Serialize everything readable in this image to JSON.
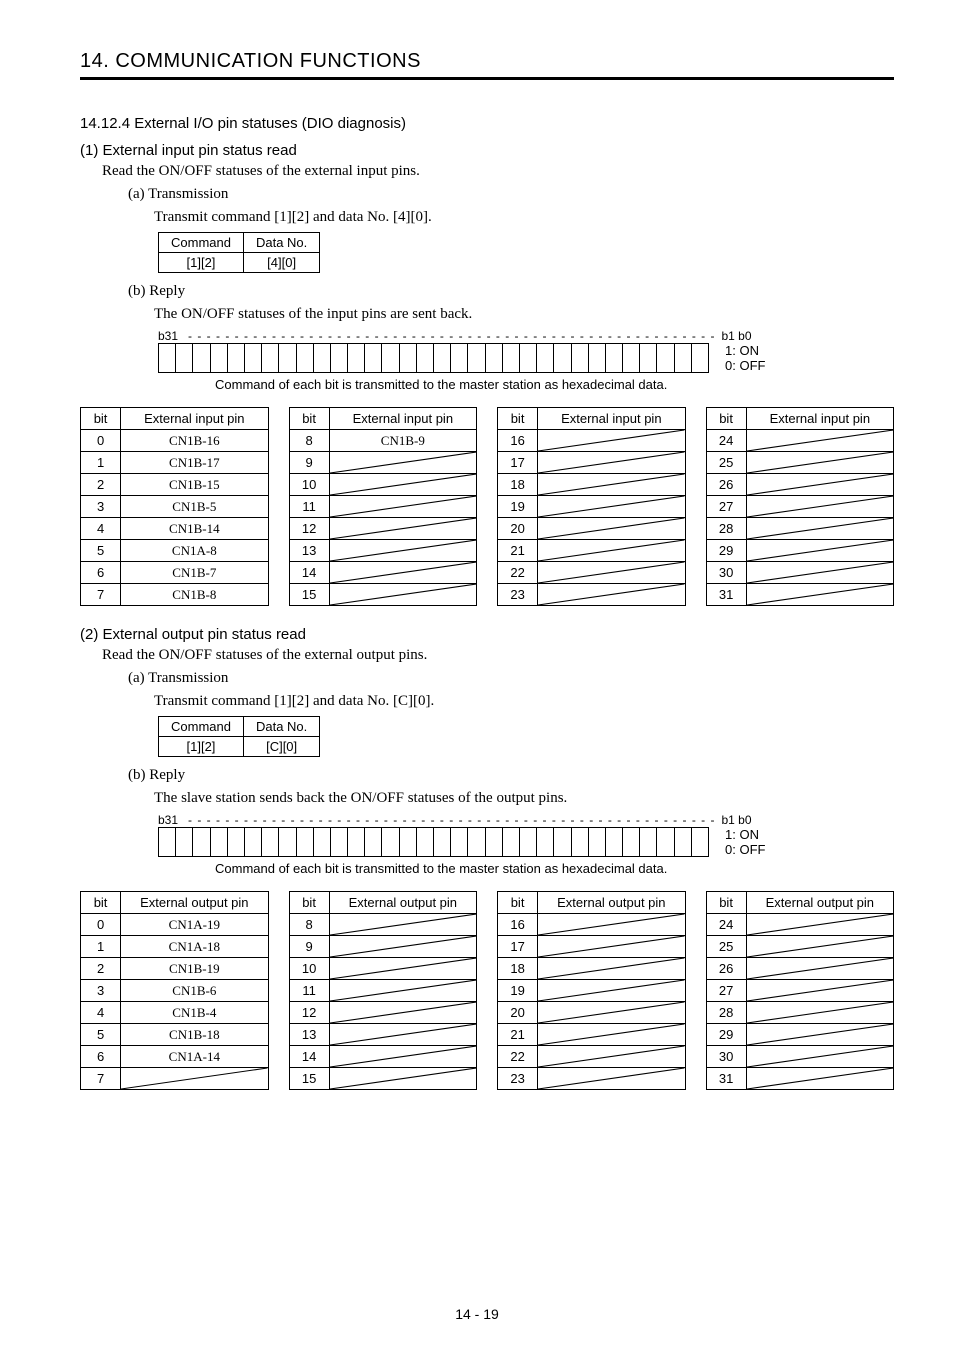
{
  "chapter_title": "14. COMMUNICATION FUNCTIONS",
  "section_title": "14.12.4 External I/O pin statuses (DIO diagnosis)",
  "page_number": "14 -  19",
  "section1": {
    "heading": "(1) External input pin status read",
    "desc": "Read the ON/OFF statuses of the external input pins.",
    "a": {
      "heading": "(a) Transmission",
      "desc": "Transmit command [1][2] and data No. [4][0].",
      "cmd_table": {
        "headers": [
          "Command",
          "Data No."
        ],
        "row": [
          "[1][2]",
          "[4][0]"
        ]
      }
    },
    "b": {
      "heading": "(b) Reply",
      "desc": "The ON/OFF statuses of the input pins are sent back.",
      "bit_left": "b31",
      "bit_right": "b1  b0",
      "legend_on": "1: ON",
      "legend_off": "0: OFF",
      "note": "Command of each bit is transmitted to the master station as hexadecimal data."
    },
    "pin_header": [
      "bit",
      "External input pin"
    ],
    "pins": [
      [
        "0",
        "CN1B-16"
      ],
      [
        "1",
        "CN1B-17"
      ],
      [
        "2",
        "CN1B-15"
      ],
      [
        "3",
        "CN1B-5"
      ],
      [
        "4",
        "CN1B-14"
      ],
      [
        "5",
        "CN1A-8"
      ],
      [
        "6",
        "CN1B-7"
      ],
      [
        "7",
        "CN1B-8"
      ],
      [
        "8",
        "CN1B-9"
      ],
      [
        "9",
        ""
      ],
      [
        "10",
        ""
      ],
      [
        "11",
        ""
      ],
      [
        "12",
        ""
      ],
      [
        "13",
        ""
      ],
      [
        "14",
        ""
      ],
      [
        "15",
        ""
      ],
      [
        "16",
        ""
      ],
      [
        "17",
        ""
      ],
      [
        "18",
        ""
      ],
      [
        "19",
        ""
      ],
      [
        "20",
        ""
      ],
      [
        "21",
        ""
      ],
      [
        "22",
        ""
      ],
      [
        "23",
        ""
      ],
      [
        "24",
        ""
      ],
      [
        "25",
        ""
      ],
      [
        "26",
        ""
      ],
      [
        "27",
        ""
      ],
      [
        "28",
        ""
      ],
      [
        "29",
        ""
      ],
      [
        "30",
        ""
      ],
      [
        "31",
        ""
      ]
    ]
  },
  "section2": {
    "heading": "(2) External output pin status read",
    "desc": "Read the ON/OFF statuses of the external output pins.",
    "a": {
      "heading": "(a) Transmission",
      "desc": "Transmit command [1][2] and data No. [C][0].",
      "cmd_table": {
        "headers": [
          "Command",
          "Data No."
        ],
        "row": [
          "[1][2]",
          "[C][0]"
        ]
      }
    },
    "b": {
      "heading": "(b) Reply",
      "desc": "The slave station sends back the ON/OFF statuses of the output pins.",
      "bit_left": "b31",
      "bit_right": "b1  b0",
      "legend_on": "1: ON",
      "legend_off": "0: OFF",
      "note": "Command of each bit is transmitted to the master station as hexadecimal data."
    },
    "pin_header": [
      "bit",
      "External output pin"
    ],
    "pins": [
      [
        "0",
        "CN1A-19"
      ],
      [
        "1",
        "CN1A-18"
      ],
      [
        "2",
        "CN1B-19"
      ],
      [
        "3",
        "CN1B-6"
      ],
      [
        "4",
        "CN1B-4"
      ],
      [
        "5",
        "CN1B-18"
      ],
      [
        "6",
        "CN1A-14"
      ],
      [
        "7",
        ""
      ],
      [
        "8",
        ""
      ],
      [
        "9",
        ""
      ],
      [
        "10",
        ""
      ],
      [
        "11",
        ""
      ],
      [
        "12",
        ""
      ],
      [
        "13",
        ""
      ],
      [
        "14",
        ""
      ],
      [
        "15",
        ""
      ],
      [
        "16",
        ""
      ],
      [
        "17",
        ""
      ],
      [
        "18",
        ""
      ],
      [
        "19",
        ""
      ],
      [
        "20",
        ""
      ],
      [
        "21",
        ""
      ],
      [
        "22",
        ""
      ],
      [
        "23",
        ""
      ],
      [
        "24",
        ""
      ],
      [
        "25",
        ""
      ],
      [
        "26",
        ""
      ],
      [
        "27",
        ""
      ],
      [
        "28",
        ""
      ],
      [
        "29",
        ""
      ],
      [
        "30",
        ""
      ],
      [
        "31",
        ""
      ]
    ]
  }
}
